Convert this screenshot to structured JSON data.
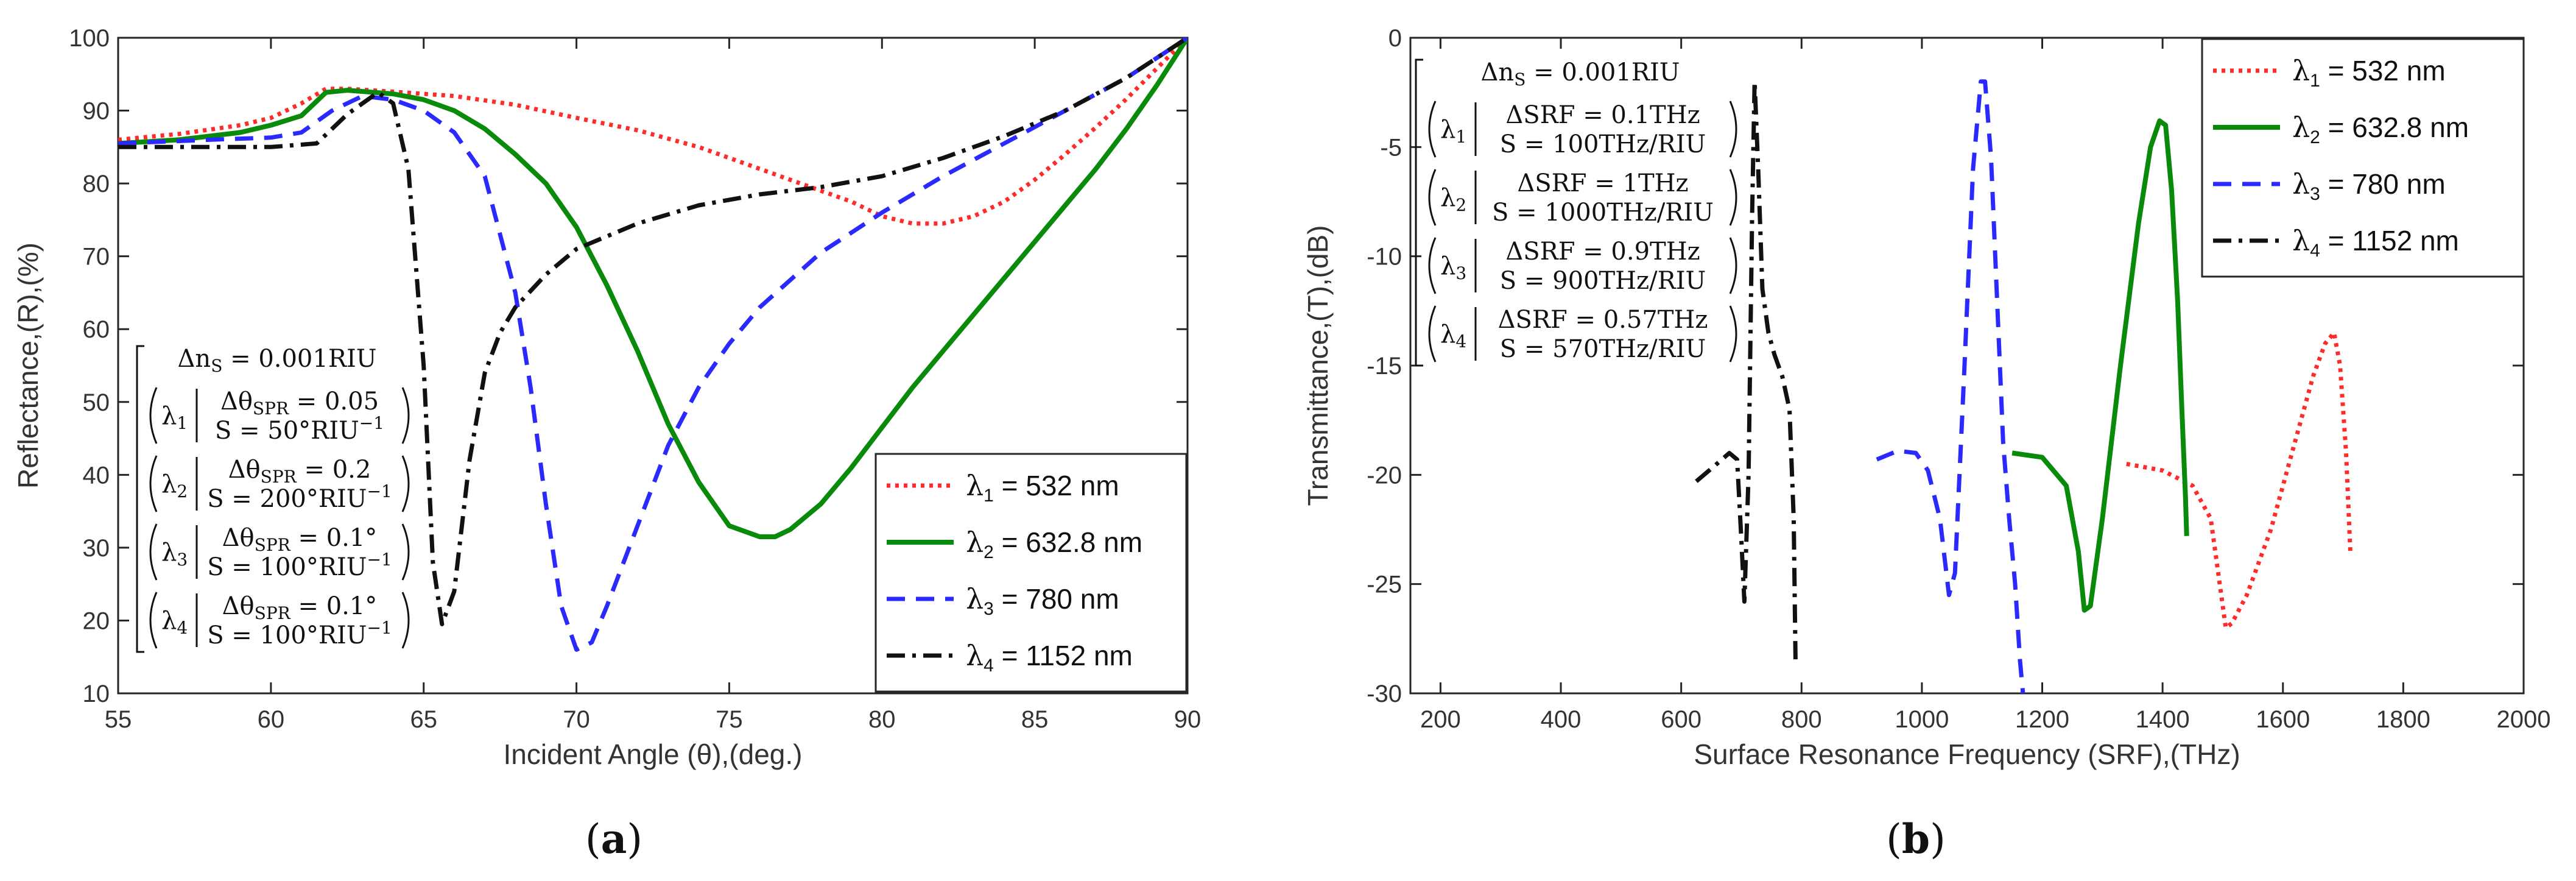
{
  "chart_data": [
    {
      "type": "line",
      "panel_label": {
        "open": "(",
        "letter": "a",
        "close": ")"
      },
      "xlabel": "Incident Angle (θ),(deg.)",
      "ylabel": "Reflectance,(R),(%)",
      "xlim": [
        55,
        90
      ],
      "ylim": [
        10,
        100
      ],
      "xticks": [
        "55",
        "60",
        "65",
        "70",
        "75",
        "80",
        "85",
        "90"
      ],
      "yticks": [
        "10",
        "20",
        "30",
        "40",
        "50",
        "60",
        "70",
        "80",
        "90",
        "100"
      ],
      "annotation": {
        "header": "Δn",
        "header_sub": "S",
        "header_rest": " = 0.001RIU",
        "rows": [
          {
            "sym": "λ",
            "idx": "1",
            "line1_pre": "Δθ",
            "line1_sub": "SPR",
            "line1_rest": " = 0.05",
            "line2": "S = 50°RIU",
            "line2_sup": "−1"
          },
          {
            "sym": "λ",
            "idx": "2",
            "line1_pre": "Δθ",
            "line1_sub": "SPR",
            "line1_rest": " = 0.2",
            "line2": "S = 200°RIU",
            "line2_sup": "−1"
          },
          {
            "sym": "λ",
            "idx": "3",
            "line1_pre": "Δθ",
            "line1_sub": "SPR",
            "line1_rest": " = 0.1°",
            "line2": "S = 100°RIU",
            "line2_sup": "−1"
          },
          {
            "sym": "λ",
            "idx": "4",
            "line1_pre": "Δθ",
            "line1_sub": "SPR",
            "line1_rest": " = 0.1°",
            "line2": "S = 100°RIU",
            "line2_sup": "−1"
          }
        ]
      },
      "legend": {
        "position": "lower-right"
      },
      "series": [
        {
          "sym": "λ",
          "idx": "1",
          "label": " = 532 nm",
          "color": "#ff2a2a",
          "dash": "dot",
          "x": [
            55,
            57,
            59,
            60,
            61,
            61.8,
            62.5,
            64,
            66,
            68,
            70,
            72,
            74,
            76,
            78,
            79,
            80,
            81,
            82,
            83,
            84,
            85,
            86,
            87,
            88,
            89,
            90
          ],
          "y": [
            86,
            86.8,
            88,
            89,
            91,
            93,
            93,
            92.6,
            92,
            90.8,
            89,
            87.3,
            85,
            82,
            79,
            77.5,
            75.5,
            74.5,
            74.5,
            75.5,
            77.5,
            80.5,
            84,
            87.7,
            91.6,
            95.8,
            100
          ]
        },
        {
          "sym": "λ",
          "idx": "2",
          "label": " = 632.8 nm",
          "color": "#0a8a0a",
          "dash": "solid",
          "x": [
            55,
            57,
            59,
            60,
            61,
            61.8,
            62.5,
            64,
            65,
            66,
            67,
            68,
            69,
            70,
            71,
            72,
            73,
            74,
            75,
            76,
            76.5,
            77,
            78,
            79,
            80,
            81,
            82,
            83,
            84,
            85,
            86,
            87,
            88,
            89,
            90
          ],
          "y": [
            85.5,
            86,
            87,
            88,
            89.3,
            92.5,
            92.8,
            92.3,
            91.5,
            90,
            87.5,
            84,
            80,
            74,
            66,
            57,
            47,
            39,
            33,
            31.5,
            31.5,
            32.5,
            36,
            41,
            46.5,
            52,
            57,
            62,
            67,
            72,
            77,
            82,
            87.5,
            93.5,
            100
          ]
        },
        {
          "sym": "λ",
          "idx": "3",
          "label": " = 780 nm",
          "color": "#2a2aff",
          "dash": "dash",
          "x": [
            55,
            58,
            60,
            61,
            62,
            63,
            64,
            65,
            66,
            67,
            68,
            68.5,
            69,
            69.5,
            70,
            70.5,
            71,
            72,
            73,
            74,
            75,
            76,
            78,
            80,
            82,
            84,
            86,
            88,
            90
          ],
          "y": [
            85.5,
            86,
            86.3,
            87,
            90,
            92,
            91.5,
            90,
            87,
            81,
            65,
            52,
            36,
            22,
            16,
            17,
            22,
            33,
            44,
            52,
            58,
            63,
            70.5,
            76,
            81,
            85.5,
            90,
            94.5,
            100
          ]
        },
        {
          "sym": "λ",
          "idx": "4",
          "label": " = 1152 nm",
          "color": "#111111",
          "dash": "dashdot",
          "x": [
            55,
            58,
            60,
            61.5,
            62.5,
            63.5,
            64,
            64.5,
            65,
            65.3,
            65.6,
            66,
            66.5,
            67,
            67.5,
            68,
            69,
            70,
            72,
            74,
            76,
            78,
            80,
            82,
            84,
            86,
            88,
            90
          ],
          "y": [
            85,
            85,
            85,
            85.5,
            89.5,
            92.5,
            91,
            82,
            55,
            28,
            19.5,
            24,
            42,
            54,
            59.5,
            63,
            67.5,
            71,
            74.5,
            77,
            78.5,
            79.5,
            81,
            83.5,
            86.5,
            90,
            94.5,
            100
          ]
        }
      ]
    },
    {
      "type": "line",
      "panel_label": {
        "open": "(",
        "letter": "b",
        "close": ")"
      },
      "xlabel": "Surface Resonance Frequency (SRF),(THz)",
      "ylabel": "Transmittance,(T),(dB)",
      "xlim": [
        150,
        2000
      ],
      "ylim": [
        -30,
        0
      ],
      "xticks": [
        "200",
        "400",
        "600",
        "800",
        "1000",
        "1200",
        "1400",
        "1600",
        "1800",
        "2000"
      ],
      "yticks": [
        "-30",
        "-25",
        "-20",
        "-15",
        "-10",
        "-5",
        "0"
      ],
      "annotation": {
        "header": "Δn",
        "header_sub": "S",
        "header_rest": " = 0.001RIU",
        "rows": [
          {
            "sym": "λ",
            "idx": "1",
            "line1": "ΔSRF = 0.1THz",
            "line2": "S = 100THz/RIU"
          },
          {
            "sym": "λ",
            "idx": "2",
            "line1": "ΔSRF = 1THz",
            "line2": "S = 1000THz/RIU"
          },
          {
            "sym": "λ",
            "idx": "3",
            "line1": "ΔSRF = 0.9THz",
            "line2": "S = 900THz/RIU"
          },
          {
            "sym": "λ",
            "idx": "4",
            "line1": "ΔSRF = 0.57THz",
            "line2": "S = 570THz/RIU"
          }
        ]
      },
      "legend": {
        "position": "top-right"
      },
      "series": [
        {
          "sym": "λ",
          "idx": "1",
          "label": " = 532 nm",
          "color": "#ff2a2a",
          "dash": "dot",
          "x": [
            1340,
            1400,
            1450,
            1480,
            1495,
            1505,
            1515,
            1540,
            1580,
            1620,
            1650,
            1670,
            1685,
            1695,
            1705,
            1712
          ],
          "y": [
            -19.5,
            -19.8,
            -20.5,
            -22,
            -25,
            -27,
            -26.8,
            -25.5,
            -22.5,
            -18.5,
            -15.5,
            -14,
            -13.5,
            -15,
            -19,
            -23.5
          ]
        },
        {
          "sym": "λ",
          "idx": "2",
          "label": " = 632.8 nm",
          "color": "#0a8a0a",
          "dash": "solid",
          "x": [
            1150,
            1200,
            1240,
            1260,
            1270,
            1280,
            1300,
            1330,
            1360,
            1380,
            1395,
            1405,
            1415,
            1425,
            1432,
            1438,
            1440
          ],
          "y": [
            -19,
            -19.2,
            -20.5,
            -23.5,
            -26.2,
            -26,
            -22,
            -15,
            -8.5,
            -5,
            -3.8,
            -4,
            -7,
            -12,
            -17,
            -21,
            -22.8
          ]
        },
        {
          "sym": "λ",
          "idx": "3",
          "label": " = 780 nm",
          "color": "#2a2aff",
          "dash": "dash",
          "x": [
            925,
            960,
            990,
            1010,
            1030,
            1045,
            1055,
            1070,
            1085,
            1098,
            1105,
            1115,
            1125,
            1135,
            1145,
            1155,
            1163,
            1168
          ],
          "y": [
            -19.3,
            -18.9,
            -19,
            -19.8,
            -22,
            -25.5,
            -24.5,
            -15.5,
            -6,
            -2,
            -2,
            -5.5,
            -12,
            -18.5,
            -22,
            -25,
            -28.5,
            -30
          ]
        },
        {
          "sym": "λ",
          "idx": "4",
          "label": " = 1152 nm",
          "color": "#111111",
          "dash": "dashdot",
          "x": [
            625,
            655,
            680,
            693,
            700,
            705,
            712,
            718,
            722,
            728,
            735,
            745,
            755,
            768,
            780,
            787,
            790
          ],
          "y": [
            -20.3,
            -19.6,
            -19,
            -19.3,
            -23,
            -25.8,
            -20,
            -8,
            -2,
            -6,
            -11.5,
            -13.5,
            -14.5,
            -15.5,
            -17,
            -22,
            -28.5
          ]
        }
      ]
    }
  ]
}
